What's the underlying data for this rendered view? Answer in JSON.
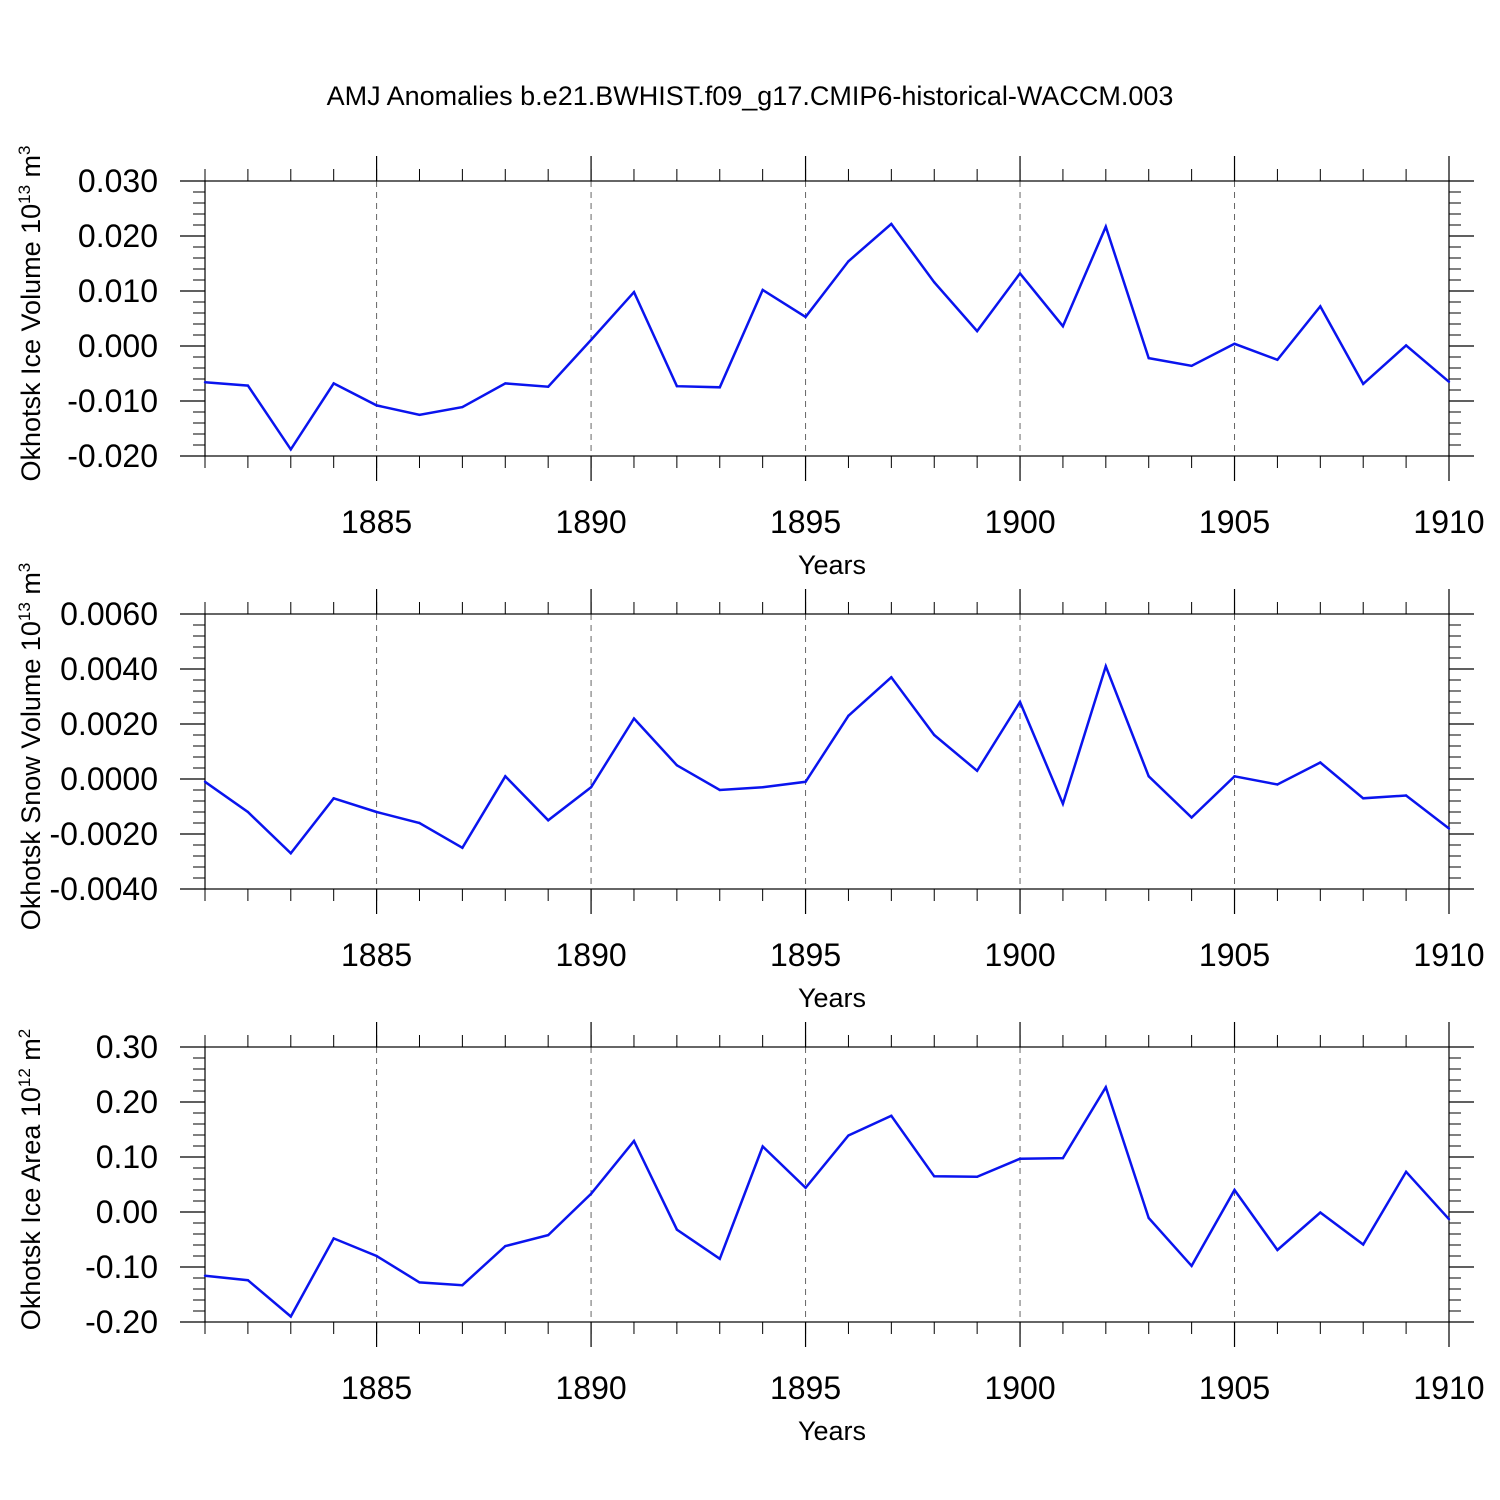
{
  "title": "AMJ Anomalies b.e21.BWHIST.f09_g17.CMIP6-historical-WACCM.003",
  "colors": {
    "line": "#0a14ee",
    "axis": "#000000",
    "grid": "#666666"
  },
  "chart_data": [
    {
      "type": "line",
      "ylabel_main": "Okhotsk Ice Volume 10",
      "ylabel_exp": "13",
      "ylabel_unit": " m",
      "ylabel_unit_exp": "3",
      "xlabel": "Years",
      "xlim": [
        1881,
        1910
      ],
      "ylim": [
        -0.02,
        0.03
      ],
      "x_ticks": [
        1885,
        1890,
        1895,
        1900,
        1905,
        1910
      ],
      "y_ticks": [
        -0.02,
        -0.01,
        0.0,
        0.01,
        0.02,
        0.03
      ],
      "y_tick_labels": [
        "-0.020",
        "-0.010",
        "0.000",
        "0.010",
        "0.020",
        "0.030"
      ],
      "grid": "vertical dashed at major x ticks",
      "x": [
        1881,
        1882,
        1883,
        1884,
        1885,
        1886,
        1887,
        1888,
        1889,
        1890,
        1891,
        1892,
        1893,
        1894,
        1895,
        1896,
        1897,
        1898,
        1899,
        1900,
        1901,
        1902,
        1903,
        1904,
        1905,
        1906,
        1907,
        1908,
        1909,
        1910
      ],
      "values": [
        -0.0066,
        -0.0072,
        -0.0188,
        -0.0068,
        -0.0108,
        -0.0125,
        -0.0111,
        -0.0068,
        -0.0074,
        0.0011,
        0.0098,
        -0.0073,
        -0.0075,
        0.0102,
        0.0053,
        0.0154,
        0.0222,
        0.0116,
        0.0027,
        0.0132,
        0.0036,
        0.0217,
        -0.0022,
        -0.0036,
        0.0004,
        -0.0025,
        0.0072,
        -0.0069,
        0.0001,
        -0.0065
      ]
    },
    {
      "type": "line",
      "ylabel_main": "Okhotsk Snow Volume 10",
      "ylabel_exp": "13",
      "ylabel_unit": " m",
      "ylabel_unit_exp": "3",
      "xlabel": "Years",
      "xlim": [
        1881,
        1910
      ],
      "ylim": [
        -0.004,
        0.006
      ],
      "x_ticks": [
        1885,
        1890,
        1895,
        1900,
        1905,
        1910
      ],
      "y_ticks": [
        -0.004,
        -0.002,
        0.0,
        0.002,
        0.004,
        0.006
      ],
      "y_tick_labels": [
        "-0.0040",
        "-0.0020",
        "0.0000",
        "0.0020",
        "0.0040",
        "0.0060"
      ],
      "grid": "vertical dashed at major x ticks",
      "x": [
        1881,
        1882,
        1883,
        1884,
        1885,
        1886,
        1887,
        1888,
        1889,
        1890,
        1891,
        1892,
        1893,
        1894,
        1895,
        1896,
        1897,
        1898,
        1899,
        1900,
        1901,
        1902,
        1903,
        1904,
        1905,
        1906,
        1907,
        1908,
        1909,
        1910
      ],
      "values": [
        -0.0001,
        -0.0012,
        -0.0027,
        -0.0007,
        -0.0012,
        -0.0016,
        -0.0025,
        0.0001,
        -0.0015,
        -0.0003,
        0.0022,
        0.0005,
        -0.0004,
        -0.0003,
        -0.0001,
        0.0023,
        0.0037,
        0.0016,
        0.0003,
        0.0028,
        -0.0009,
        0.0041,
        0.0001,
        -0.0014,
        0.0001,
        -0.0002,
        0.0006,
        -0.0007,
        -0.0006,
        -0.0018
      ]
    },
    {
      "type": "line",
      "ylabel_main": "Okhotsk Ice Area 10",
      "ylabel_exp": "12",
      "ylabel_unit": " m",
      "ylabel_unit_exp": "2",
      "xlabel": "Years",
      "xlim": [
        1881,
        1910
      ],
      "ylim": [
        -0.2,
        0.3
      ],
      "x_ticks": [
        1885,
        1890,
        1895,
        1900,
        1905,
        1910
      ],
      "y_ticks": [
        -0.2,
        -0.1,
        0.0,
        0.1,
        0.2,
        0.3
      ],
      "y_tick_labels": [
        "-0.20",
        "-0.10",
        "0.00",
        "0.10",
        "0.20",
        "0.30"
      ],
      "grid": "vertical dashed at major x ticks",
      "x": [
        1881,
        1882,
        1883,
        1884,
        1885,
        1886,
        1887,
        1888,
        1889,
        1890,
        1891,
        1892,
        1893,
        1894,
        1895,
        1896,
        1897,
        1898,
        1899,
        1900,
        1901,
        1902,
        1903,
        1904,
        1905,
        1906,
        1907,
        1908,
        1909,
        1910
      ],
      "values": [
        -0.116,
        -0.124,
        -0.19,
        -0.048,
        -0.08,
        -0.128,
        -0.133,
        -0.062,
        -0.042,
        0.033,
        0.129,
        -0.032,
        -0.085,
        0.119,
        0.044,
        0.139,
        0.175,
        0.065,
        0.064,
        0.097,
        0.098,
        0.227,
        -0.011,
        -0.098,
        0.04,
        -0.069,
        -0.001,
        -0.059,
        0.073,
        -0.013
      ]
    }
  ]
}
